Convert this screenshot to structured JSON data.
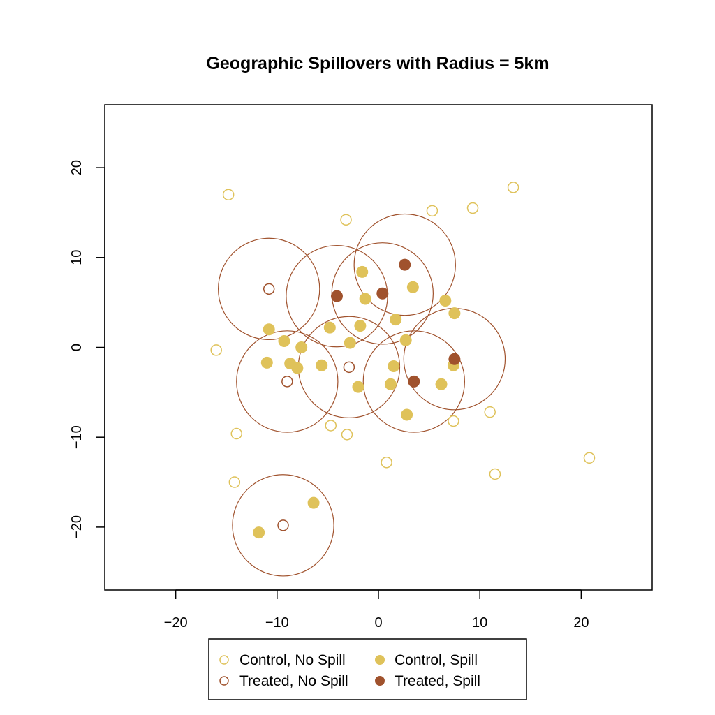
{
  "chart_data": {
    "type": "scatter",
    "title": "Geographic Spillovers with Radius = 5km",
    "xlabel": "",
    "ylabel": "",
    "xlim": [
      -27,
      27
    ],
    "ylim": [
      -27,
      27
    ],
    "x_ticks": [
      -20,
      -10,
      0,
      10,
      20
    ],
    "y_ticks": [
      -20,
      -10,
      0,
      10,
      20
    ],
    "x_tick_labels": [
      "−20",
      "−10",
      "0",
      "10",
      "20"
    ],
    "y_tick_labels": [
      "−20",
      "−10",
      "0",
      "10",
      "20"
    ],
    "grid": false,
    "spillover_radius": 5,
    "colors": {
      "control": "#dfc25a",
      "treated": "#a0522d",
      "ring": "#a0522d"
    },
    "legend": {
      "placement": "bottom",
      "entries": [
        {
          "label": "Control, No Spill",
          "group": "control",
          "filled": false
        },
        {
          "label": "Control, Spill",
          "group": "control",
          "filled": true
        },
        {
          "label": "Treated, No Spill",
          "group": "treated",
          "filled": false
        },
        {
          "label": "Treated, Spill",
          "group": "treated",
          "filled": true
        }
      ]
    },
    "series": [
      {
        "name": "Control, No Spill",
        "group": "control",
        "filled": false,
        "x": [
          -14.8,
          -3.2,
          5.3,
          9.3,
          13.3,
          -16.0,
          -14.0,
          -4.7,
          -3.1,
          0.8,
          7.4,
          11.0,
          11.5,
          20.8,
          -14.2
        ],
        "y": [
          17.0,
          14.2,
          15.2,
          15.5,
          17.8,
          -0.3,
          -9.6,
          -8.7,
          -9.7,
          -12.8,
          -8.2,
          -7.2,
          -14.1,
          -12.3,
          -15.0
        ]
      },
      {
        "name": "Control, Spill",
        "group": "control",
        "filled": true,
        "x": [
          -1.6,
          3.4,
          -1.3,
          6.6,
          7.5,
          1.7,
          -4.8,
          -1.8,
          -10.8,
          -9.3,
          -7.6,
          -2.8,
          2.7,
          -11.0,
          -8.7,
          -8.0,
          -5.6,
          1.5,
          7.4,
          1.2,
          -2.0,
          6.2,
          2.8,
          -6.4,
          -11.8
        ],
        "y": [
          8.4,
          6.7,
          5.4,
          5.2,
          3.8,
          3.1,
          2.2,
          2.4,
          2.0,
          0.7,
          0.0,
          0.5,
          0.8,
          -1.7,
          -1.8,
          -2.3,
          -2.0,
          -2.1,
          -2.0,
          -4.1,
          -4.4,
          -4.1,
          -7.5,
          -17.3,
          -20.6
        ]
      },
      {
        "name": "Treated, No Spill",
        "group": "treated",
        "filled": false,
        "x": [
          -10.8,
          -2.9,
          -9.0,
          -9.4
        ],
        "y": [
          6.5,
          -2.2,
          -3.8,
          -19.8
        ]
      },
      {
        "name": "Treated, Spill",
        "group": "treated",
        "filled": true,
        "x": [
          2.6,
          -4.1,
          0.4,
          7.5,
          3.5
        ],
        "y": [
          9.2,
          5.7,
          6.0,
          -1.3,
          -3.8
        ]
      }
    ]
  }
}
